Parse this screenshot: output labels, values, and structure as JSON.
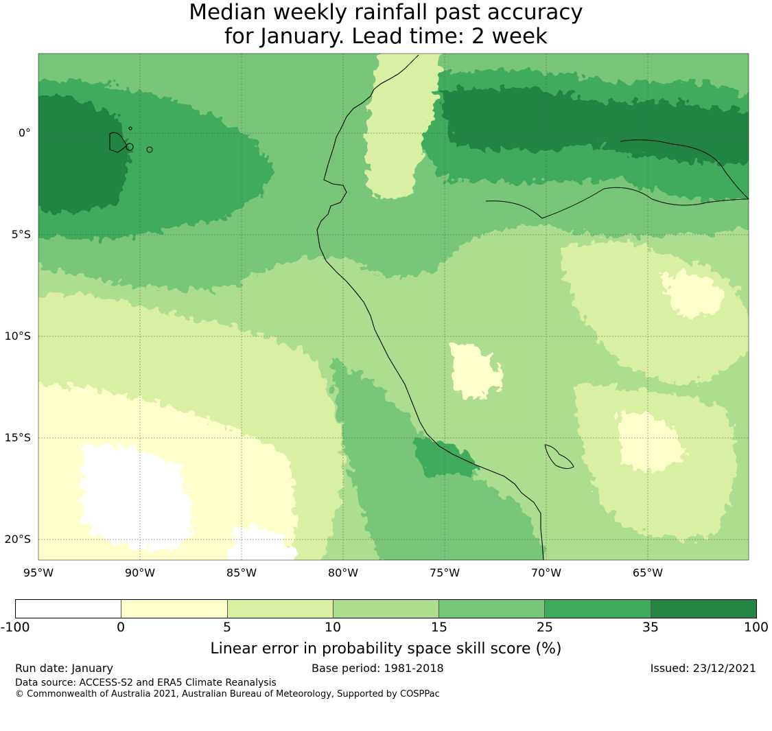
{
  "title": {
    "line1": "Median weekly rainfall past accuracy",
    "line2": "for January. Lead time: 2 week"
  },
  "map": {
    "lat_labels": [
      "0°",
      "5°S",
      "10°S",
      "15°S",
      "20°S"
    ],
    "lon_labels": [
      "95°W",
      "90°W",
      "85°W",
      "80°W",
      "75°W",
      "70°W",
      "65°W"
    ],
    "extent": {
      "lon_min": -95,
      "lon_max": -60,
      "lat_min": -21,
      "lat_max": 4
    },
    "water_color": "#ffffff",
    "coast_color": "#000000",
    "grid_color": "#555555"
  },
  "colorbar": {
    "tick_labels": [
      "-100",
      "0",
      "5",
      "10",
      "15",
      "25",
      "35",
      "100"
    ],
    "colors": [
      "#ffffff",
      "#ffffcc",
      "#d9f0a3",
      "#addd8e",
      "#78c679",
      "#41ab5d",
      "#238443"
    ],
    "label": "Linear error in probability space skill score (%)"
  },
  "footer": {
    "run_date": "Run date: January",
    "base_period": "Base period: 1981-2018",
    "issued": "Issued: 23/12/2021",
    "data_source": "Data source: ACCESS-S2 and ERA5 Climate Reanalysis",
    "copyright": "© Commonwealth of Australia 2021, Australian Bureau of Meteorology, Supported by COSPPac"
  }
}
